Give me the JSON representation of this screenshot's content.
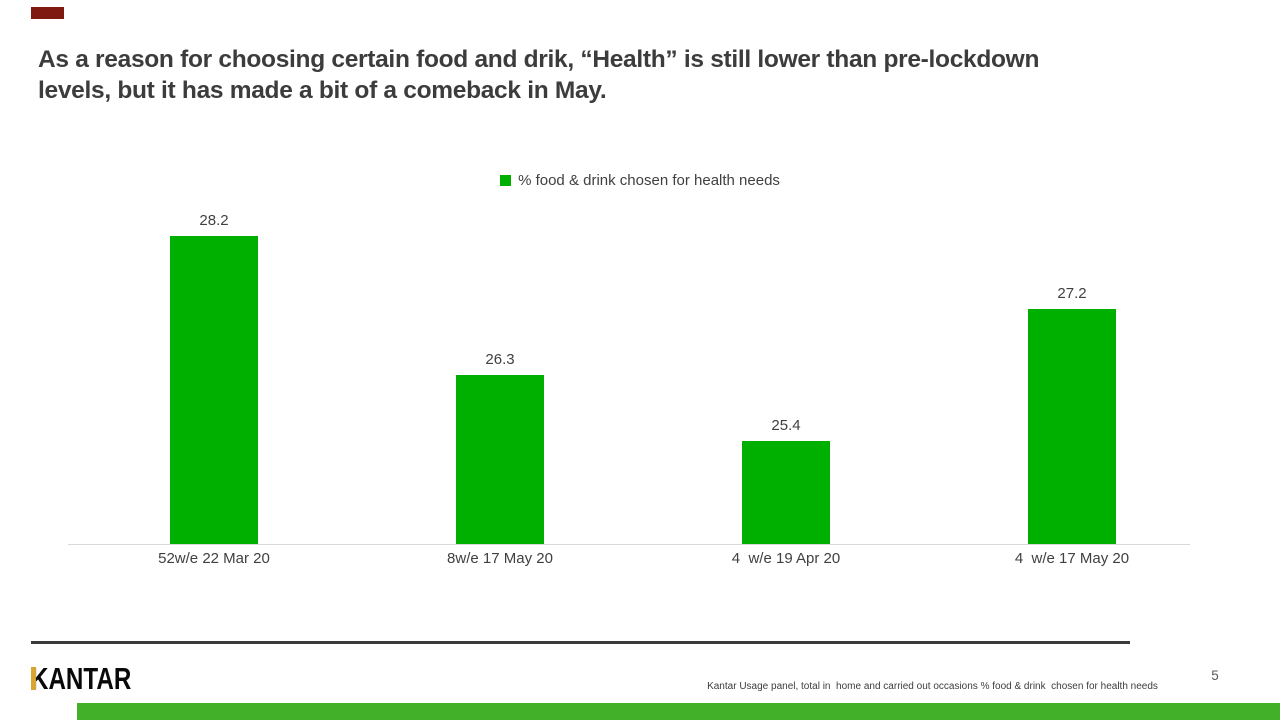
{
  "slide": {
    "title_lines": [
      "As a reason for choosing certain food and drik, “Health” is still lower than pre-lockdown",
      "levels, but it has made a bit of a comeback in May."
    ],
    "logo_text": "KANTAR",
    "footer_source": "Kantar Usage panel, total in  home and carried out occasions % food & drink  chosen for health needs",
    "page_number": "5"
  },
  "chart_data": {
    "type": "bar",
    "title": "",
    "legend": [
      {
        "label": "% food & drink chosen for health needs",
        "color": "#00b000"
      }
    ],
    "legend_position": "top",
    "categories": [
      "52w/e 22 Mar 20",
      "8w/e 17 May 20",
      "4  w/e 19 Apr 20",
      "4  w/e 17 May 20"
    ],
    "values": [
      28.2,
      26.3,
      25.4,
      27.2
    ],
    "data_labels": [
      "28.2",
      "26.3",
      "25.4",
      "27.2"
    ],
    "bar_color": "#00b000",
    "xlabel": "",
    "ylabel": "",
    "ylim": [
      24,
      29.2
    ],
    "gridlines": false,
    "axis_line_color": "#d9d9d9"
  },
  "colors": {
    "title_text": "#3c3c3c",
    "label_text": "#404040",
    "bar_green": "#00b000",
    "top_accent_red": "#7e1a10",
    "bottom_accent_green": "#43b02a",
    "logo_gold": "#d9a531",
    "divider_dark": "#3a3a3a"
  }
}
